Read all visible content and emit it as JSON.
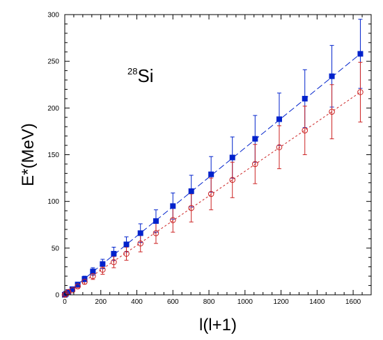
{
  "chart_data": {
    "type": "scatter",
    "title": "",
    "xlabel": "l(l+1)",
    "ylabel": "E*(MeV)",
    "xlim": [
      0,
      1700
    ],
    "ylim": [
      0,
      300
    ],
    "x_ticks": [
      0,
      200,
      400,
      600,
      800,
      1000,
      1200,
      1400,
      1600
    ],
    "y_ticks": [
      0,
      50,
      100,
      150,
      200,
      250,
      300
    ],
    "x_tick_labels": [
      "0",
      "200",
      "400",
      "600",
      "800",
      "1000",
      "1200",
      "1400",
      "1600"
    ],
    "y_tick_labels": [
      "0",
      "50",
      "100",
      "150",
      "200",
      "250",
      "300"
    ],
    "annotation": {
      "mass_number": "28",
      "element": "Si"
    },
    "grid": false,
    "legend": "none",
    "series": [
      {
        "marker": "filled-square",
        "color": "#0022cc",
        "line_style": "long-dash",
        "points": [
          {
            "x": 0,
            "y": 0,
            "err": 0
          },
          {
            "x": 6,
            "y": 1,
            "err": 0
          },
          {
            "x": 20,
            "y": 3,
            "err": 0.5
          },
          {
            "x": 42,
            "y": 6,
            "err": 1
          },
          {
            "x": 72,
            "y": 11,
            "err": 2
          },
          {
            "x": 110,
            "y": 17,
            "err": 3
          },
          {
            "x": 156,
            "y": 25,
            "err": 4
          },
          {
            "x": 210,
            "y": 33,
            "err": 5
          },
          {
            "x": 272,
            "y": 44,
            "err": 7
          },
          {
            "x": 342,
            "y": 54,
            "err": 8
          },
          {
            "x": 420,
            "y": 66,
            "err": 10
          },
          {
            "x": 506,
            "y": 79,
            "err": 12
          },
          {
            "x": 600,
            "y": 95,
            "err": 14
          },
          {
            "x": 702,
            "y": 111,
            "err": 17
          },
          {
            "x": 812,
            "y": 129,
            "err": 19
          },
          {
            "x": 930,
            "y": 147,
            "err": 22
          },
          {
            "x": 1056,
            "y": 167,
            "err": 25
          },
          {
            "x": 1190,
            "y": 188,
            "err": 28
          },
          {
            "x": 1332,
            "y": 210,
            "err": 31
          },
          {
            "x": 1482,
            "y": 234,
            "err": 33
          },
          {
            "x": 1640,
            "y": 258,
            "err": 37
          }
        ]
      },
      {
        "marker": "open-circle",
        "color": "#cc2222",
        "line_style": "short-dash",
        "points": [
          {
            "x": 0,
            "y": 0,
            "err": 0
          },
          {
            "x": 6,
            "y": 1,
            "err": 0
          },
          {
            "x": 20,
            "y": 3,
            "err": 0.5
          },
          {
            "x": 42,
            "y": 5,
            "err": 1
          },
          {
            "x": 72,
            "y": 9,
            "err": 1.5
          },
          {
            "x": 110,
            "y": 14,
            "err": 2.5
          },
          {
            "x": 156,
            "y": 20,
            "err": 3.5
          },
          {
            "x": 210,
            "y": 27,
            "err": 5
          },
          {
            "x": 272,
            "y": 35,
            "err": 6
          },
          {
            "x": 342,
            "y": 44,
            "err": 7
          },
          {
            "x": 420,
            "y": 55,
            "err": 9
          },
          {
            "x": 506,
            "y": 66,
            "err": 11
          },
          {
            "x": 600,
            "y": 80,
            "err": 13
          },
          {
            "x": 702,
            "y": 93,
            "err": 15
          },
          {
            "x": 812,
            "y": 108,
            "err": 17
          },
          {
            "x": 930,
            "y": 123,
            "err": 19
          },
          {
            "x": 1056,
            "y": 140,
            "err": 21
          },
          {
            "x": 1190,
            "y": 158,
            "err": 23
          },
          {
            "x": 1332,
            "y": 176,
            "err": 26
          },
          {
            "x": 1482,
            "y": 196,
            "err": 29
          },
          {
            "x": 1640,
            "y": 217,
            "err": 32
          }
        ]
      }
    ]
  }
}
